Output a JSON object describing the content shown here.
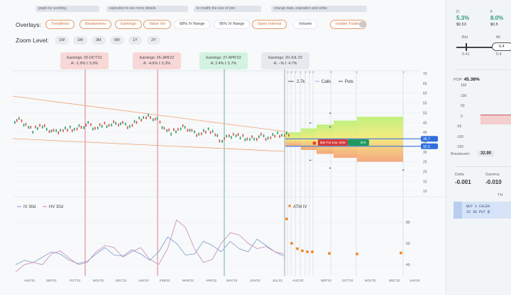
{
  "hints": [
    "graph by scrolling.",
    "expiration to see more details",
    "to modify the size of plot",
    "change date, expiration and strike"
  ],
  "overlays": {
    "label": "Overlays:",
    "items": [
      {
        "label": "Trendlines",
        "on": true
      },
      {
        "label": "Breakevens",
        "on": true
      },
      {
        "label": "Earnings",
        "on": true
      },
      {
        "label": "Value Vol",
        "on": true
      },
      {
        "label": "68% IV Range",
        "on": false
      },
      {
        "label": "95% IV Range",
        "on": false
      },
      {
        "label": "Open Interest",
        "on": true
      },
      {
        "label": "Volume",
        "on": false
      },
      {
        "label": "Insider Trades",
        "on": true
      }
    ]
  },
  "zoom": {
    "label": "Zoom Level:",
    "items": [
      "1W",
      "1M",
      "3M",
      "6M",
      "1Y",
      "2Y"
    ]
  },
  "earnings": [
    {
      "title": "Earnings: 20-OCT'21",
      "detail": "A: -1.9%   I: 5.0%",
      "color": "#f8d7d7",
      "line": "#d88080"
    },
    {
      "title": "Earnings: 26-JAN'22",
      "detail": "A: -4.6%   I: 5.3%",
      "color": "#f8d7d7",
      "line": "#d88080"
    },
    {
      "title": "Earnings: 27-APR'22",
      "detail": "A: 2.4%   I: 5.7%",
      "color": "#d3f2e1",
      "line": "#6ab59a"
    },
    {
      "title": "Earnings: 20-JUL'22",
      "detail": "A: --%   I: 4.7%",
      "color": "#e6e9ed",
      "line": "#9aa3ad"
    }
  ],
  "legend": {
    "oi": "2.7k",
    "calls": "Calls",
    "puts": "Puts"
  },
  "price_tags": {
    "upper": "36.7",
    "lower": "32.9"
  },
  "trade_label": "$36 Put Exp. 8/26",
  "trade_label2": "$76",
  "lower_legend": {
    "iv": "IV 30d",
    "hv": "HV 30d",
    "atm": "ATM IV"
  },
  "chart_data": [
    {
      "type": "line",
      "title": "",
      "ylim": [
        10,
        70
      ],
      "yticks": [
        70,
        65,
        60,
        55,
        50,
        45,
        40,
        35,
        30,
        25,
        20,
        15,
        10
      ],
      "price": [
        46,
        44,
        41,
        43,
        42,
        40,
        41,
        42,
        41,
        43,
        44,
        42,
        44,
        43,
        45,
        44,
        43,
        46,
        47,
        48,
        46,
        42,
        40,
        41,
        43,
        40,
        39,
        41,
        40,
        36,
        37,
        39,
        38,
        36,
        37,
        38,
        37,
        39,
        38,
        39
      ],
      "colors": {
        "up": "#2aa06a",
        "down": "#d6534d",
        "trend": "#f0a070",
        "band_upper": "#4a7fd6"
      }
    },
    {
      "type": "line",
      "ylim": [
        30,
        90
      ],
      "yticks": [
        80,
        60,
        40
      ],
      "xticks": [
        "AUG'21",
        "SEP'21",
        "OCT'21",
        "NOV'21",
        "DEC'21",
        "JAN'22",
        "FEB'22",
        "MAR'22",
        "APR'22",
        "MAY'22",
        "JUN'22",
        "JUL'22",
        "AUG'22",
        "SEP'22",
        "OCT'22",
        "NOV'22",
        "DEC'22",
        "JAN'23"
      ],
      "series": [
        {
          "name": "IV 30d",
          "color": "#7a9cc9",
          "values": [
            40,
            44,
            42,
            47,
            52,
            50,
            44,
            41,
            43,
            50,
            56,
            49,
            48,
            54,
            50,
            44,
            52,
            66,
            60,
            49,
            50,
            62,
            58,
            52,
            62,
            55,
            52,
            64,
            58,
            52,
            48
          ]
        },
        {
          "name": "HV 30d",
          "color": "#c98ab5",
          "values": [
            33,
            40,
            42,
            40,
            50,
            53,
            46,
            40,
            42,
            52,
            58,
            56,
            47,
            52,
            56,
            45,
            40,
            55,
            82,
            75,
            55,
            42,
            45,
            60,
            70,
            68,
            60,
            55,
            57,
            52,
            50
          ]
        },
        {
          "name": "ATM IV",
          "color": "#f08a30",
          "values": [
            83,
            60,
            55,
            53,
            52,
            52,
            50.5,
            50,
            51
          ]
        }
      ]
    }
  ],
  "right": {
    "d_label": "D",
    "d_val": "5.3%",
    "d_price": "$0.53",
    "f_label": "F",
    "f_val": "8.0%",
    "f_price": "$0.5",
    "bid_label": "Bid",
    "mid_label": "Mi",
    "bid": "0.41",
    "mid": "0.4",
    "mid2": "0.4",
    "pop_label": "POP:",
    "pop": "45.38%",
    "pl_ticks": [
      "150",
      "100",
      "50",
      "0",
      "-50",
      "-100",
      "-150"
    ],
    "breakeven_label": "Breakeven:",
    "breakeven": "32.90",
    "delta_label": "Delta",
    "delta": "-0.001",
    "gamma_label": "Gamma",
    "gamma": "-0.010",
    "th": "TH",
    "order": "BUY 1 CALEN",
    "order2": "22 36 PUT @"
  }
}
